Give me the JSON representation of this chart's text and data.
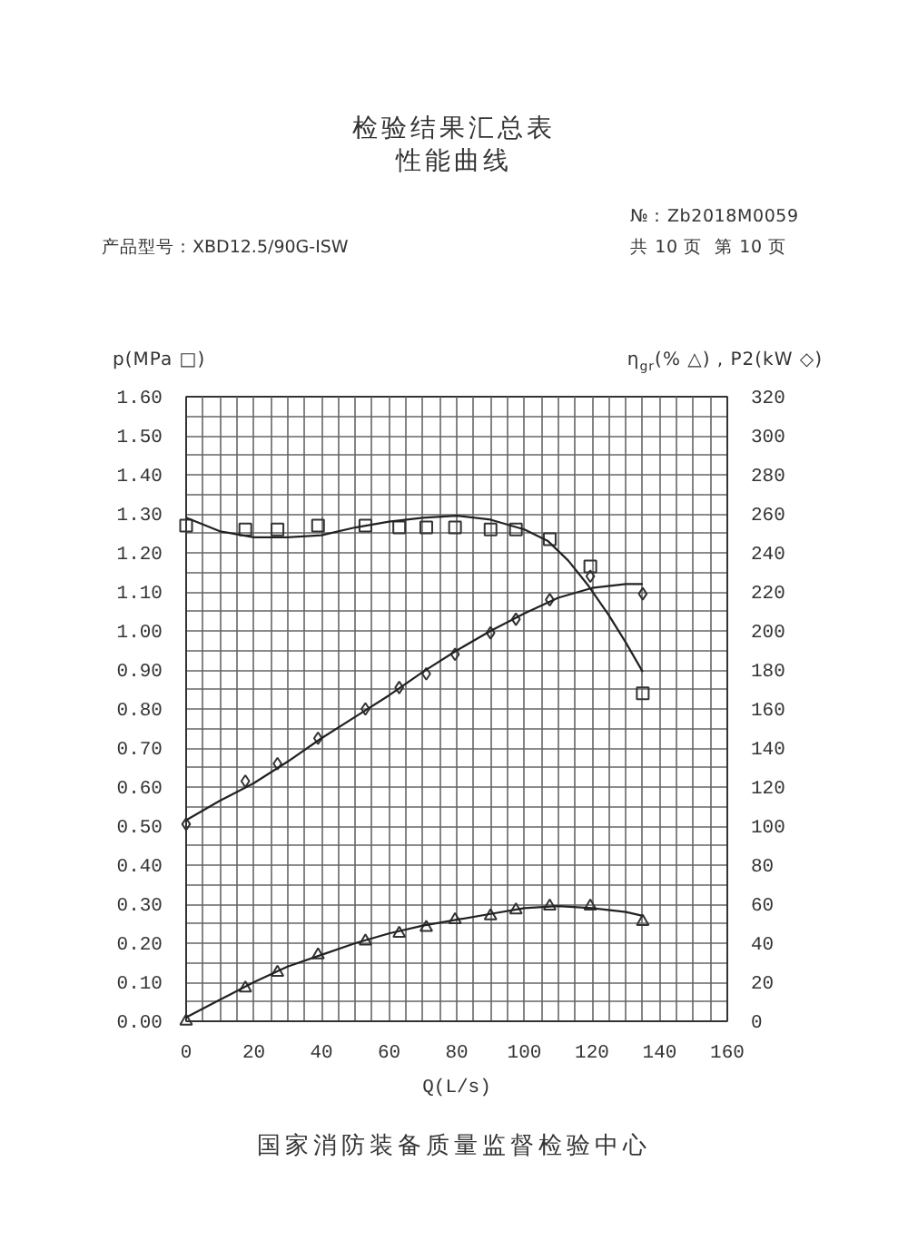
{
  "chart_data": {
    "type": "scatter",
    "title": "检验结果汇总表",
    "subtitle": "性能曲线",
    "annotations": [
      "产品型号：XBD12.5/90G-ISW",
      "№：Zb2018M0059",
      "共 10 页  第 10 页",
      "国家消防装备质量监督检验中心"
    ],
    "xlabel": "Q(L/s)",
    "ylabel": "p(MPa □)",
    "y2label": "η$_{gr}$(% △) , P2(kW ◇)",
    "xlim": [
      0,
      160
    ],
    "xticks": [
      0,
      20,
      40,
      60,
      80,
      100,
      120,
      140,
      160
    ],
    "ylim": [
      0,
      1.6
    ],
    "yticks": [
      {
        "value": 0,
        "label": "0.00"
      },
      {
        "value": 0.1,
        "label": "0.10"
      },
      {
        "value": 0.2,
        "label": "0.20"
      },
      {
        "value": 0.3,
        "label": "0.30"
      },
      {
        "value": 0.4,
        "label": "0.40"
      },
      {
        "value": 0.5,
        "label": "0.50"
      },
      {
        "value": 0.6,
        "label": "0.60"
      },
      {
        "value": 0.7,
        "label": "0.70"
      },
      {
        "value": 0.8,
        "label": "0.80"
      },
      {
        "value": 0.9,
        "label": "0.90"
      },
      {
        "value": 1.0,
        "label": "1.00"
      },
      {
        "value": 1.1,
        "label": "1.10"
      },
      {
        "value": 1.2,
        "label": "1.20"
      },
      {
        "value": 1.3,
        "label": "1.30"
      },
      {
        "value": 1.4,
        "label": "1.40"
      },
      {
        "value": 1.5,
        "label": "1.50"
      },
      {
        "value": 1.6,
        "label": "1.60"
      }
    ],
    "y2lim": [
      0,
      320
    ],
    "y2ticks": [
      0,
      20,
      40,
      60,
      80,
      100,
      120,
      140,
      160,
      180,
      200,
      220,
      240,
      260,
      280,
      300,
      320
    ],
    "grid": true,
    "line_style": "solid",
    "series": [
      {
        "type": "line",
        "color": "#222222",
        "x": [
          0,
          10,
          20,
          30,
          40,
          50,
          60,
          70,
          80,
          90,
          100,
          107,
          113,
          119,
          125,
          130,
          135
        ],
        "values": [
          1.29,
          1.255,
          1.24,
          1.24,
          1.245,
          1.265,
          1.28,
          1.29,
          1.295,
          1.285,
          1.26,
          1.23,
          1.18,
          1.115,
          1.04,
          0.97,
          0.895
        ]
      },
      {
        "marker": "square",
        "color": "#333333",
        "x": [
          0,
          17.5,
          27,
          39,
          53,
          63,
          71,
          79.5,
          90,
          97.5,
          107.5,
          119.5,
          135
        ],
        "values": [
          1.27,
          1.26,
          1.26,
          1.27,
          1.27,
          1.265,
          1.265,
          1.265,
          1.26,
          1.26,
          1.235,
          1.165,
          0.84
        ]
      },
      {
        "type": "line",
        "axis": "y2",
        "color": "#222222",
        "x": [
          0,
          10,
          20,
          30,
          40,
          50,
          60,
          70,
          80,
          90,
          100,
          110,
          120,
          130,
          135
        ],
        "values": [
          103,
          113,
          122,
          133,
          145,
          156,
          167,
          179,
          190,
          200,
          209,
          217,
          222,
          224,
          224
        ]
      },
      {
        "axis": "y2",
        "marker": "diamond",
        "color": "#333333",
        "x": [
          0,
          17.5,
          27,
          39,
          53,
          63,
          71,
          79.5,
          90,
          97.5,
          107.5,
          119.5,
          135
        ],
        "values": [
          101,
          123,
          132,
          145,
          160,
          171,
          178,
          188,
          199,
          206,
          216,
          228,
          219
        ]
      },
      {
        "type": "line",
        "axis": "y2",
        "color": "#222222",
        "x": [
          0,
          10,
          20,
          30,
          40,
          50,
          60,
          70,
          80,
          90,
          100,
          110,
          120,
          130,
          135
        ],
        "values": [
          2,
          11,
          20,
          28,
          34,
          40,
          45,
          49,
          52,
          55,
          58,
          59,
          58,
          56,
          54
        ]
      },
      {
        "axis": "y2",
        "marker": "triangle",
        "color": "#333333",
        "x": [
          0,
          17.5,
          27,
          39,
          53,
          63,
          71,
          79.5,
          90,
          97.5,
          107.5,
          119.5,
          135
        ],
        "values": [
          0,
          17,
          25,
          34,
          41,
          45,
          48,
          52,
          54,
          57,
          59,
          59,
          51
        ]
      }
    ]
  }
}
